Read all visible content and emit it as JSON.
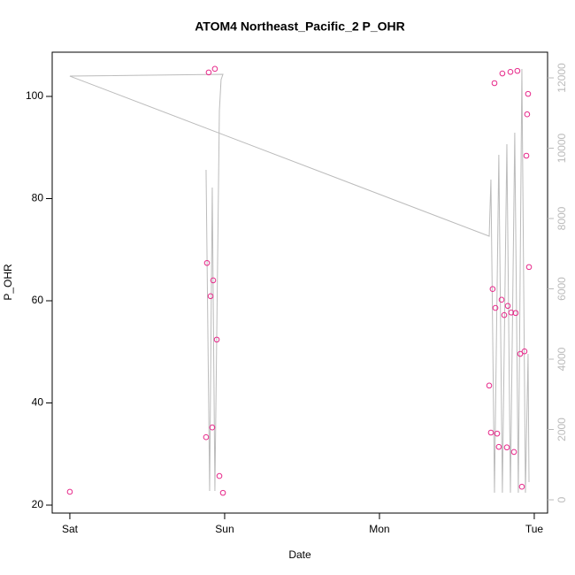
{
  "chart_data": {
    "type": "scatter",
    "title": "ATOM4 Northeast_Pacific_2 P_OHR",
    "x_label": "Date",
    "y_label": "P_OHR",
    "xlim": [
      -0.114,
      3.086
    ],
    "xticks": [
      {
        "value": 0,
        "label": "Sat"
      },
      {
        "value": 1,
        "label": "Sun"
      },
      {
        "value": 2,
        "label": "Mon"
      },
      {
        "value": 3,
        "label": "Tue"
      }
    ],
    "ylim": [
      18.44,
      108.66
    ],
    "yticks": [
      20,
      40,
      60,
      80,
      100
    ],
    "y2lim": [
      -377,
      12730
    ],
    "y2ticks": [
      0,
      2000,
      4000,
      6000,
      8000,
      10000,
      12000
    ],
    "y2_color": "#bbbbbb",
    "series": [
      {
        "color": "#e7298a",
        "x": [
          0,
          0.897,
          0.937,
          0.886,
          0.909,
          0.926,
          0.949,
          0.88,
          0.92,
          0.966,
          0.989,
          2.743,
          2.794,
          2.846,
          2.891,
          2.954,
          2.96,
          2.949,
          2.966,
          2.731,
          2.749,
          2.789,
          2.806,
          2.829,
          2.851,
          2.88,
          2.709,
          2.72,
          2.76,
          2.771,
          2.823,
          2.869,
          2.909,
          2.937,
          2.92
        ],
        "values": [
          22.6,
          104.7,
          105.4,
          67.4,
          60.9,
          64.0,
          52.4,
          33.3,
          35.2,
          25.7,
          22.4,
          102.6,
          104.5,
          104.8,
          105.0,
          96.5,
          100.5,
          88.4,
          66.6,
          62.3,
          58.6,
          60.2,
          57.2,
          59.0,
          57.7,
          57.6,
          43.4,
          34.2,
          34.0,
          31.4,
          31.3,
          30.4,
          49.6,
          50.1,
          23.6
        ]
      },
      {
        "color": "#bbbbbb",
        "axis": "y2",
        "type": "line",
        "x": [
          0.88,
          0.903,
          0.92,
          0.937,
          0.966,
          0.977,
          0.989,
          0,
          2.709,
          2.72,
          2.743,
          2.771,
          2.794,
          2.823,
          2.846,
          2.874,
          2.897,
          2.92,
          2.943,
          2.96,
          2.966
        ],
        "values": [
          9384,
          252,
          8881,
          252,
          11069,
          11950,
          12101,
          12050,
          7497,
          9107,
          201,
          9811,
          201,
          10113,
          201,
          10440,
          201,
          12252,
          201,
          4151,
          503
        ]
      }
    ]
  }
}
